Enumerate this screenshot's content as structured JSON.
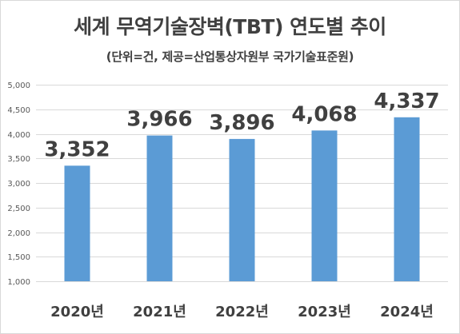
{
  "chart_data": {
    "type": "bar",
    "title": "세계 무역기술장벽(TBT) 연도별 추이",
    "subtitle": "(단위=건, 제공=산업통상자원부 국가기술표준원)",
    "categories": [
      "2020년",
      "2021년",
      "2022년",
      "2023년",
      "2024년"
    ],
    "values": [
      3352,
      3966,
      3896,
      4068,
      4337
    ],
    "data_labels": [
      "3,352",
      "3,966",
      "3,896",
      "4,068",
      "4,337"
    ],
    "ylim": [
      1000,
      5000
    ],
    "yticks": [
      1000,
      1500,
      2000,
      2500,
      3000,
      3500,
      4000,
      4500,
      5000
    ],
    "ytick_labels": [
      "1,000",
      "1,500",
      "2,000",
      "2,500",
      "3,000",
      "3,500",
      "4,000",
      "4,500",
      "5,000"
    ],
    "grid": true,
    "bar_color": "#5b9bd5",
    "grid_color": "#d9d9d9",
    "text_color": "#404040"
  }
}
